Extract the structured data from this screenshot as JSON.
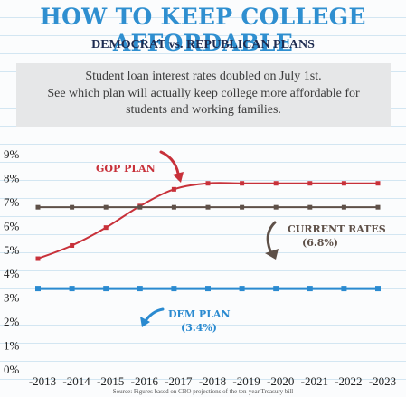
{
  "header": {
    "title": "HOW TO KEEP COLLEGE AFFORDABLE",
    "subtitle": "DEMOCRAT vs. REPUBLICAN PLANS"
  },
  "intro": {
    "line1": "Student loan interest rates doubled on July 1st.",
    "line2": "See which plan will actually keep college more affordable for",
    "line3": "students and working families."
  },
  "source": "Source: Figures based on CBO projections of the ten-year Treasury bill",
  "chart_data": {
    "type": "line",
    "title": "",
    "xlabel": "",
    "ylabel": "",
    "categories": [
      "2013",
      "2014",
      "2015",
      "2016",
      "2017",
      "2018",
      "2019",
      "2020",
      "2021",
      "2022",
      "2023"
    ],
    "x_tick_labels": [
      "-2013",
      "-2014",
      "-2015",
      "-2016",
      "-2017",
      "-2018",
      "-2019",
      "-2020",
      "-2021",
      "-2022",
      "-2023"
    ],
    "y_ticks": [
      0,
      1,
      2,
      3,
      4,
      5,
      6,
      7,
      8,
      9
    ],
    "y_tick_labels": [
      "0%",
      "1%",
      "2%",
      "3%",
      "4%",
      "5%",
      "6%",
      "7%",
      "8%",
      "9%"
    ],
    "ylim": [
      0,
      9
    ],
    "grid": true,
    "series": [
      {
        "key": "gop",
        "label_lines": [
          "GOP PLAN"
        ],
        "color": "#c8313a",
        "values": [
          4.65,
          5.2,
          5.95,
          6.85,
          7.55,
          7.8,
          7.8,
          7.8,
          7.8,
          7.8,
          7.8
        ]
      },
      {
        "key": "current",
        "label_lines": [
          "CURRENT RATES",
          "(6.8%)"
        ],
        "color": "#5e5048",
        "values": [
          6.8,
          6.8,
          6.8,
          6.8,
          6.8,
          6.8,
          6.8,
          6.8,
          6.8,
          6.8,
          6.8
        ]
      },
      {
        "key": "dem",
        "label_lines": [
          "DEM PLAN",
          "(3.4%)"
        ],
        "color": "#2a8ad0",
        "values": [
          3.4,
          3.4,
          3.4,
          3.4,
          3.4,
          3.4,
          3.4,
          3.4,
          3.4,
          3.4,
          3.4
        ]
      }
    ]
  }
}
